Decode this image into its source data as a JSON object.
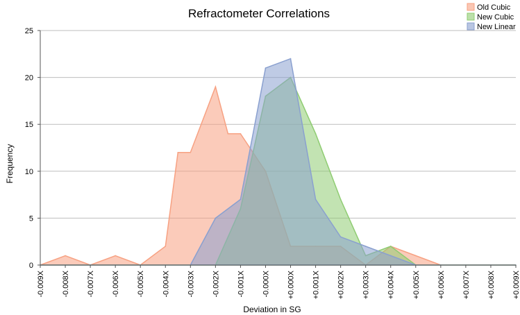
{
  "chart_data": {
    "type": "area",
    "title": "Refractometer  Correlations",
    "xlabel": "Deviation in SG",
    "ylabel": "Frequency",
    "ylim": [
      0,
      25
    ],
    "yticks": [
      "0",
      "5",
      "10",
      "15",
      "20",
      "25"
    ],
    "grid": true,
    "legend_position": "top-right",
    "categories": [
      "-0.009X",
      "-0.008X",
      "-0.007X",
      "-0.006X",
      "-0.005X",
      "-0.004X",
      "-0.003X",
      "-0.002X",
      "-0.001X",
      "-0.000X",
      "+0.000X",
      "+0.001X",
      "+0.002X",
      "+0.003X",
      "+0.004X",
      "+0.005X",
      "+0.006X",
      "+0.007X",
      "+0.008X",
      "+0.009X"
    ],
    "series": [
      {
        "name": "Old Cubic",
        "color": "#f7a182",
        "values": [
          0,
          1,
          0,
          1,
          0,
          2,
          12,
          19,
          14,
          10,
          2,
          2,
          2,
          0,
          2,
          1,
          0,
          0,
          0,
          0
        ],
        "extra_points": [
          {
            "x": "-0.0035X",
            "y": 12
          },
          {
            "x": "-0.0015X",
            "y": 14
          }
        ]
      },
      {
        "name": "New Cubic",
        "color": "#8fcc72",
        "values": [
          0,
          0,
          0,
          0,
          0,
          0,
          0,
          0,
          6,
          18,
          20,
          14,
          7,
          1,
          2,
          0,
          0,
          0,
          0,
          0
        ]
      },
      {
        "name": "New Linear",
        "color": "#8aa0cf",
        "values": [
          0,
          0,
          0,
          0,
          0,
          0,
          0,
          5,
          7,
          21,
          22,
          7,
          3,
          2,
          1,
          0,
          0,
          0,
          0,
          0
        ]
      }
    ]
  }
}
